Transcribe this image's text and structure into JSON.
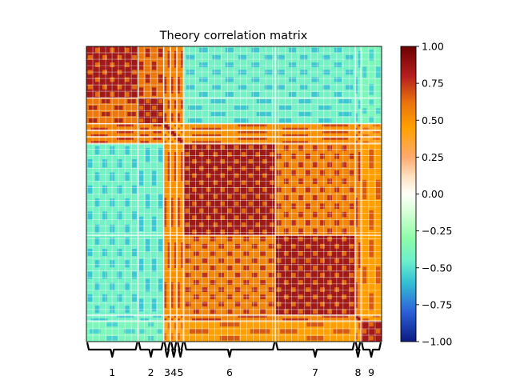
{
  "chart_data": {
    "type": "heatmap",
    "title": "Theory correlation matrix",
    "xlabel": "",
    "ylabel": "",
    "colorbar": {
      "min": -1.0,
      "max": 1.0,
      "ticks": [
        1.0,
        0.75,
        0.5,
        0.25,
        0.0,
        -0.25,
        -0.5,
        -0.75,
        -1.0
      ],
      "tick_labels": [
        "1.00",
        "0.75",
        "0.50",
        "0.25",
        "0.00",
        "−0.25",
        "−0.50",
        "−0.75",
        "−1.00"
      ],
      "colors": [
        {
          "v": -1.0,
          "hex": "#0b1a80"
        },
        {
          "v": -0.8,
          "hex": "#2c5fd8"
        },
        {
          "v": -0.6,
          "hex": "#34c0d4"
        },
        {
          "v": -0.45,
          "hex": "#6ef0cc"
        },
        {
          "v": -0.3,
          "hex": "#8dfca8"
        },
        {
          "v": -0.12,
          "hex": "#d8ffd8"
        },
        {
          "v": 0.0,
          "hex": "#fffffa"
        },
        {
          "v": 0.12,
          "hex": "#ffe1c0"
        },
        {
          "v": 0.25,
          "hex": "#ffaa6e"
        },
        {
          "v": 0.45,
          "hex": "#ffa000"
        },
        {
          "v": 0.62,
          "hex": "#e9730e"
        },
        {
          "v": 0.8,
          "hex": "#b41e1e"
        },
        {
          "v": 1.0,
          "hex": "#6b0000"
        }
      ]
    },
    "groups": [
      {
        "label": "1",
        "from": 0.0,
        "to": 0.175
      },
      {
        "label": "2",
        "from": 0.175,
        "to": 0.262
      },
      {
        "label": "3",
        "from": 0.262,
        "to": 0.285
      },
      {
        "label": "4",
        "from": 0.285,
        "to": 0.307
      },
      {
        "label": "5",
        "from": 0.307,
        "to": 0.33
      },
      {
        "label": "6",
        "from": 0.33,
        "to": 0.64
      },
      {
        "label": "7",
        "from": 0.64,
        "to": 0.91
      },
      {
        "label": "8",
        "from": 0.91,
        "to": 0.93
      },
      {
        "label": "9",
        "from": 0.93,
        "to": 1.0
      }
    ]
  }
}
